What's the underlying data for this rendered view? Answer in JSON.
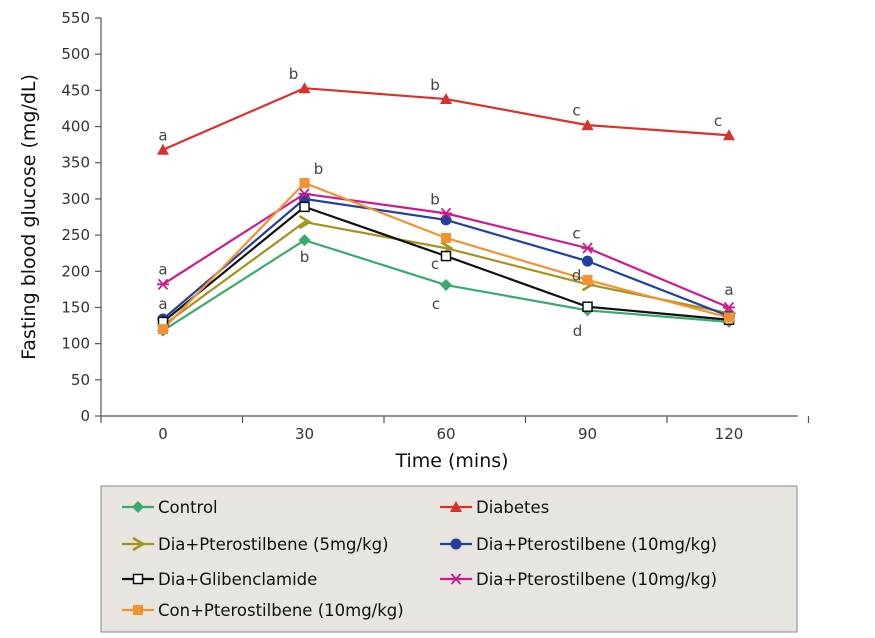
{
  "chart_data": {
    "type": "line",
    "title": "",
    "xlabel": "Time (mins)",
    "ylabel": "Fasting blood glucose (mg/dL)",
    "x": [
      0,
      30,
      60,
      90,
      120
    ],
    "x_tick_labels": [
      "0",
      "30",
      "60",
      "90",
      "120"
    ],
    "y_ticks": [
      0,
      50,
      100,
      150,
      200,
      250,
      300,
      350,
      400,
      450,
      500,
      550
    ],
    "ylim": [
      0,
      550
    ],
    "grid": false,
    "legend_position": "bottom",
    "series": [
      {
        "name": "Control",
        "color": "#3aab6e",
        "marker": "diamond",
        "values": [
          118,
          243,
          181,
          146,
          130
        ]
      },
      {
        "name": "Diabetes",
        "color": "#d9322b",
        "marker": "triangle",
        "values": [
          368,
          453,
          438,
          402,
          388
        ]
      },
      {
        "name": "Dia+Pterostilbene (5mg/kg)",
        "color": "#a3931f",
        "marker": "chevron",
        "values": [
          125,
          268,
          232,
          182,
          142
        ]
      },
      {
        "name": "Dia+Pterostilbene (10mg/kg)",
        "color": "#2040a0",
        "marker": "circle",
        "values": [
          134,
          300,
          271,
          214,
          138
        ]
      },
      {
        "name": "Dia+Glibenclamide",
        "color": "#111111",
        "marker": "square-open",
        "values": [
          130,
          289,
          221,
          151,
          133
        ]
      },
      {
        "name": "Dia+Pterostilbene (10mg/kg)",
        "color": "#cc1b8c",
        "marker": "star",
        "values": [
          182,
          307,
          280,
          232,
          150
        ]
      },
      {
        "name": "Con+Pterostilbene (10mg/kg)",
        "color": "#f39231",
        "marker": "square",
        "values": [
          120,
          322,
          246,
          188,
          136
        ]
      }
    ],
    "annotations": [
      {
        "text": "a",
        "x": 0,
        "y": 375,
        "position": "above"
      },
      {
        "text": "b",
        "x": 30,
        "y": 460,
        "position": "above-left"
      },
      {
        "text": "b",
        "x": 60,
        "y": 445,
        "position": "above-left"
      },
      {
        "text": "c",
        "x": 90,
        "y": 410,
        "position": "above-left"
      },
      {
        "text": "c",
        "x": 120,
        "y": 395,
        "position": "above-left"
      },
      {
        "text": "a",
        "x": 0,
        "y": 190,
        "position": "above"
      },
      {
        "text": "a",
        "x": 0,
        "y": 142,
        "position": "above"
      },
      {
        "text": "b",
        "x": 30,
        "y": 329,
        "position": "above-right"
      },
      {
        "text": "b",
        "x": 30,
        "y": 232,
        "position": "below"
      },
      {
        "text": "b",
        "x": 60,
        "y": 287,
        "position": "above-left"
      },
      {
        "text": "c",
        "x": 60,
        "y": 210,
        "position": "left"
      },
      {
        "text": "c",
        "x": 60,
        "y": 167,
        "position": "below-left"
      },
      {
        "text": "c",
        "x": 90,
        "y": 240,
        "position": "above-left"
      },
      {
        "text": "d",
        "x": 90,
        "y": 194,
        "position": "left"
      },
      {
        "text": "d",
        "x": 90,
        "y": 130,
        "position": "below-left"
      },
      {
        "text": "a",
        "x": 120,
        "y": 162,
        "position": "above"
      }
    ]
  }
}
